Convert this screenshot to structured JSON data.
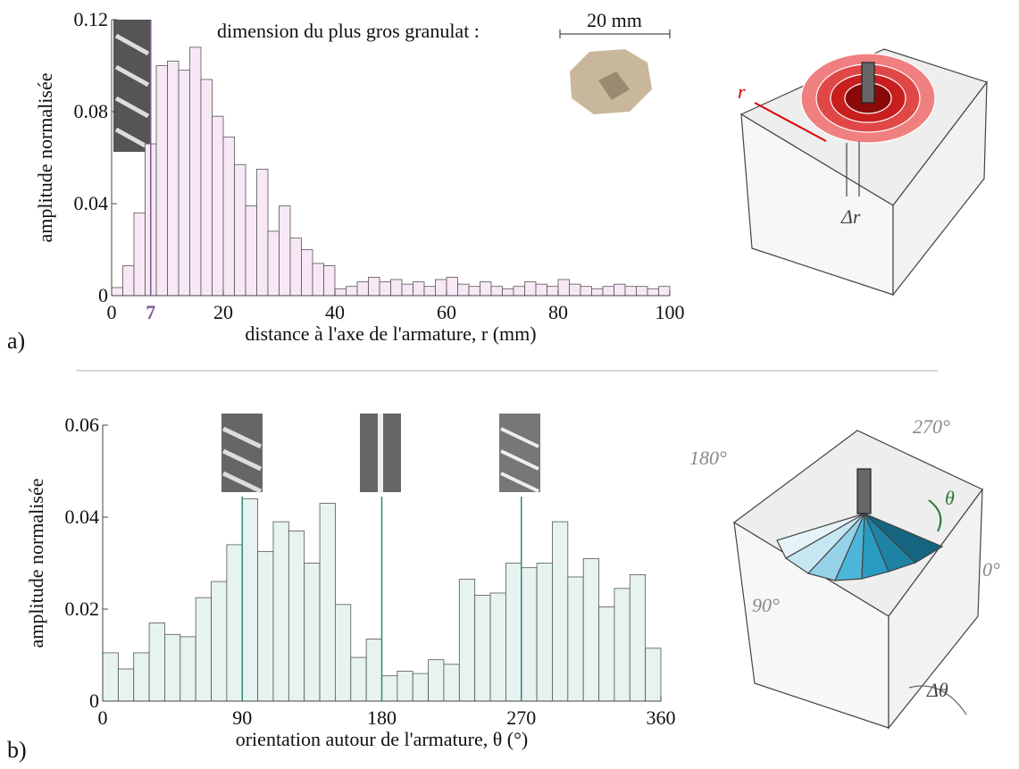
{
  "chart_data": [
    {
      "type": "histogram",
      "panel": "a)",
      "annotation": "dimension du plus gros granulat :",
      "scale_label": "20 mm",
      "xlabel": "distance à l'axe de l'armature, r (mm)",
      "ylabel": "amplitude normalisée",
      "bins": [
        0,
        2,
        4,
        6,
        8,
        10,
        12,
        14,
        16,
        18,
        20,
        22,
        24,
        26,
        28,
        30,
        32,
        34,
        36,
        38,
        40,
        42,
        44,
        46,
        48,
        50,
        52,
        54,
        56,
        58,
        60,
        62,
        64,
        66,
        68,
        70,
        72,
        74,
        76,
        78,
        80,
        82,
        84,
        86,
        88,
        90,
        92,
        94,
        96,
        98,
        100
      ],
      "values": [
        0.0035,
        0.013,
        0.036,
        0.066,
        0.1,
        0.102,
        0.098,
        0.108,
        0.094,
        0.078,
        0.069,
        0.057,
        0.039,
        0.055,
        0.028,
        0.039,
        0.025,
        0.02,
        0.014,
        0.013,
        0.003,
        0.004,
        0.006,
        0.008,
        0.006,
        0.007,
        0.005,
        0.006,
        0.004,
        0.007,
        0.008,
        0.005,
        0.004,
        0.006,
        0.004,
        0.003,
        0.004,
        0.006,
        0.005,
        0.004,
        0.007,
        0.005,
        0.004,
        0.003,
        0.004,
        0.005,
        0.004,
        0.004,
        0.003,
        0.004
      ],
      "color": "#f8e8f6",
      "edge_color": "#555",
      "xlim": [
        0,
        100
      ],
      "xticks": [
        0,
        20,
        40,
        60,
        80,
        100
      ],
      "ylim": [
        0,
        0.12
      ],
      "yticks": [
        0,
        0.04,
        0.08,
        0.12
      ],
      "vlines": [
        7
      ],
      "vline_color": "#7a5a8e"
    },
    {
      "type": "histogram",
      "panel": "b)",
      "xlabel": "orientation autour de l'armature, θ (°)",
      "ylabel": "amplitude normalisée",
      "bins": [
        0,
        10,
        20,
        30,
        40,
        50,
        60,
        70,
        80,
        90,
        100,
        110,
        120,
        130,
        140,
        150,
        160,
        170,
        180,
        190,
        200,
        210,
        220,
        230,
        240,
        250,
        260,
        270,
        280,
        290,
        300,
        310,
        320,
        330,
        340,
        350,
        360
      ],
      "values": [
        0.0105,
        0.007,
        0.0105,
        0.017,
        0.0145,
        0.014,
        0.0225,
        0.026,
        0.034,
        0.044,
        0.0325,
        0.039,
        0.037,
        0.03,
        0.043,
        0.021,
        0.0095,
        0.0135,
        0.0055,
        0.0065,
        0.006,
        0.009,
        0.008,
        0.0265,
        0.023,
        0.0235,
        0.03,
        0.029,
        0.03,
        0.039,
        0.027,
        0.031,
        0.0205,
        0.0245,
        0.0275,
        0.0115
      ],
      "color": "#e6f3f0",
      "edge_color": "#555",
      "xlim": [
        0,
        360
      ],
      "xticks": [
        0,
        90,
        180,
        270,
        360
      ],
      "ylim": [
        0,
        0.06
      ],
      "yticks": [
        0,
        0.02,
        0.04,
        0.06
      ],
      "vlines": [
        90,
        180,
        270
      ],
      "vline_color": "#2e8b74"
    }
  ],
  "diagrams": {
    "radial": {
      "r": "r",
      "dr": "Δr"
    },
    "angular": {
      "a180": "180°",
      "a270": "270°",
      "theta": "θ",
      "a0": "0°",
      "a90": "90°",
      "dtheta": "Δθ"
    }
  }
}
